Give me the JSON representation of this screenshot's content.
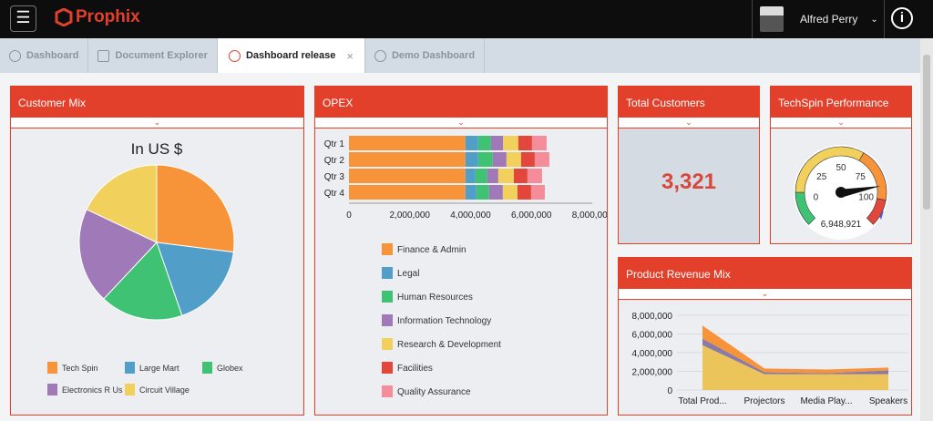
{
  "header": {
    "brand": "Prophix",
    "user": "Alfred Perry",
    "menu_icon": "hamburger-icon",
    "info_icon": "info-icon"
  },
  "tabs": [
    {
      "label": "Dashboard"
    },
    {
      "label": "Document Explorer"
    },
    {
      "label": "Dashboard release",
      "active": true
    },
    {
      "label": "Demo Dashboard"
    }
  ],
  "colors": {
    "accent": "#e3402c",
    "header_bg": "#0d0d0d"
  },
  "panels": {
    "customer_mix": "Customer Mix",
    "opex": "OPEX",
    "total_customers": "Total Customers",
    "techspin": "TechSpin Performance",
    "product_revenue": "Product Revenue Mix"
  },
  "total_customers_value": "3,321",
  "chart_data": [
    {
      "type": "pie",
      "title": "In US $",
      "series": [
        {
          "name": "Tech Spin",
          "value": 27,
          "color": "#f7943a"
        },
        {
          "name": "Large Mart",
          "value": 17.7,
          "color": "#519fc9"
        },
        {
          "name": "Globex",
          "value": 17.3,
          "color": "#3fc274"
        },
        {
          "name": "Electronics R Us",
          "value": 20,
          "color": "#a07ab8"
        },
        {
          "name": "Circuit Village",
          "value": 18,
          "color": "#f2d05c"
        }
      ]
    },
    {
      "type": "bar",
      "orientation": "horizontal",
      "stacked": true,
      "categories": [
        "Qtr 1",
        "Qtr 2",
        "Qtr 3",
        "Qtr 4"
      ],
      "xlim": [
        0,
        8000000
      ],
      "xticks": [
        "0",
        "2,000,000",
        "4,000,000",
        "6,000,000",
        "8,000,000"
      ],
      "series": [
        {
          "name": "Finance & Admin",
          "color": "#f7943a",
          "values": [
            3830000,
            3830000,
            3830000,
            3830000
          ]
        },
        {
          "name": "Legal",
          "color": "#519fc9",
          "values": [
            420000,
            420000,
            330000,
            360000
          ]
        },
        {
          "name": "Human Resources",
          "color": "#3fc274",
          "values": [
            420000,
            480000,
            390000,
            420000
          ]
        },
        {
          "name": "Information Technology",
          "color": "#a07ab8",
          "values": [
            400000,
            450000,
            360000,
            450000
          ]
        },
        {
          "name": "Research & Development",
          "color": "#f2d05c",
          "values": [
            500000,
            480000,
            510000,
            480000
          ]
        },
        {
          "name": "Facilities",
          "color": "#e3463a",
          "values": [
            450000,
            450000,
            450000,
            450000
          ]
        },
        {
          "name": "Quality Assurance",
          "color": "#f58c9a",
          "values": [
            480000,
            480000,
            480000,
            450000
          ]
        }
      ]
    },
    {
      "type": "gauge",
      "labels": [
        "0",
        "25",
        "50",
        "75",
        "100"
      ],
      "value_label": "6,948,921",
      "needle": 100
    },
    {
      "type": "area",
      "stacked": true,
      "categories": [
        "Total Prod...",
        "Projectors",
        "Media Play...",
        "Speakers"
      ],
      "ylim": [
        0,
        8000000
      ],
      "yticks": [
        "0",
        "2,000,000",
        "4,000,000",
        "6,000,000",
        "8,000,000"
      ],
      "series": [
        {
          "color": "#ebc45a",
          "values": [
            4800000,
            1700000,
            1700000,
            1700000
          ]
        },
        {
          "color": "#8a7aa8",
          "values": [
            700000,
            200000,
            100000,
            400000
          ]
        },
        {
          "color": "#f7943a",
          "values": [
            1400000,
            400000,
            400000,
            300000
          ]
        }
      ]
    }
  ]
}
